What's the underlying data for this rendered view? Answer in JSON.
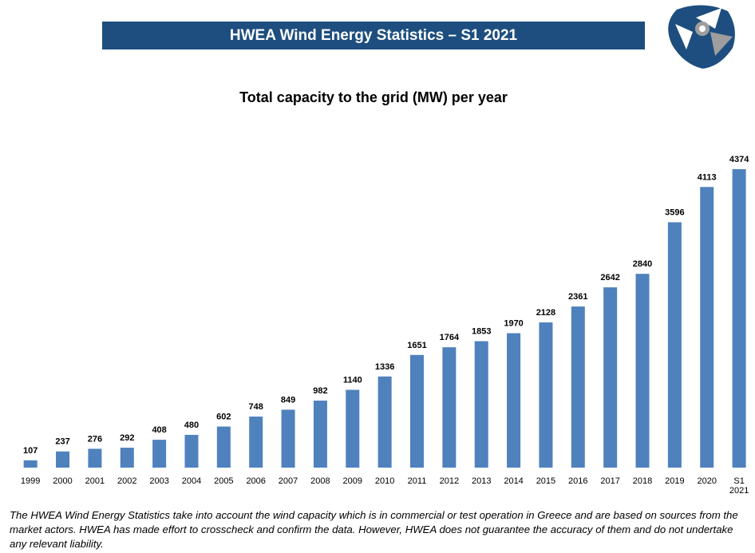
{
  "header": {
    "title": "HWEA Wind Energy Statistics – S1 2021"
  },
  "chart_data": {
    "type": "bar",
    "title": "Total capacity to the grid (MW) per year",
    "categories": [
      "1999",
      "2000",
      "2001",
      "2002",
      "2003",
      "2004",
      "2005",
      "2006",
      "2007",
      "2008",
      "2009",
      "2010",
      "2011",
      "2012",
      "2013",
      "2014",
      "2015",
      "2016",
      "2017",
      "2018",
      "2019",
      "2020",
      "S1 2021"
    ],
    "values": [
      107,
      237,
      276,
      292,
      408,
      480,
      602,
      748,
      849,
      982,
      1140,
      1336,
      1651,
      1764,
      1853,
      1970,
      2128,
      2361,
      2642,
      2840,
      3596,
      4113,
      4374
    ],
    "color": "#4f81bd"
  },
  "footnote": "The HWEA Wind Energy Statistics take into account the wind capacity which is in commercial or test operation in Greece and are based on sources from the market actors. HWEA has made effort to crosscheck and confirm the data. However, HWEA does not guarantee the accuracy of them and do not undertake any relevant liability."
}
